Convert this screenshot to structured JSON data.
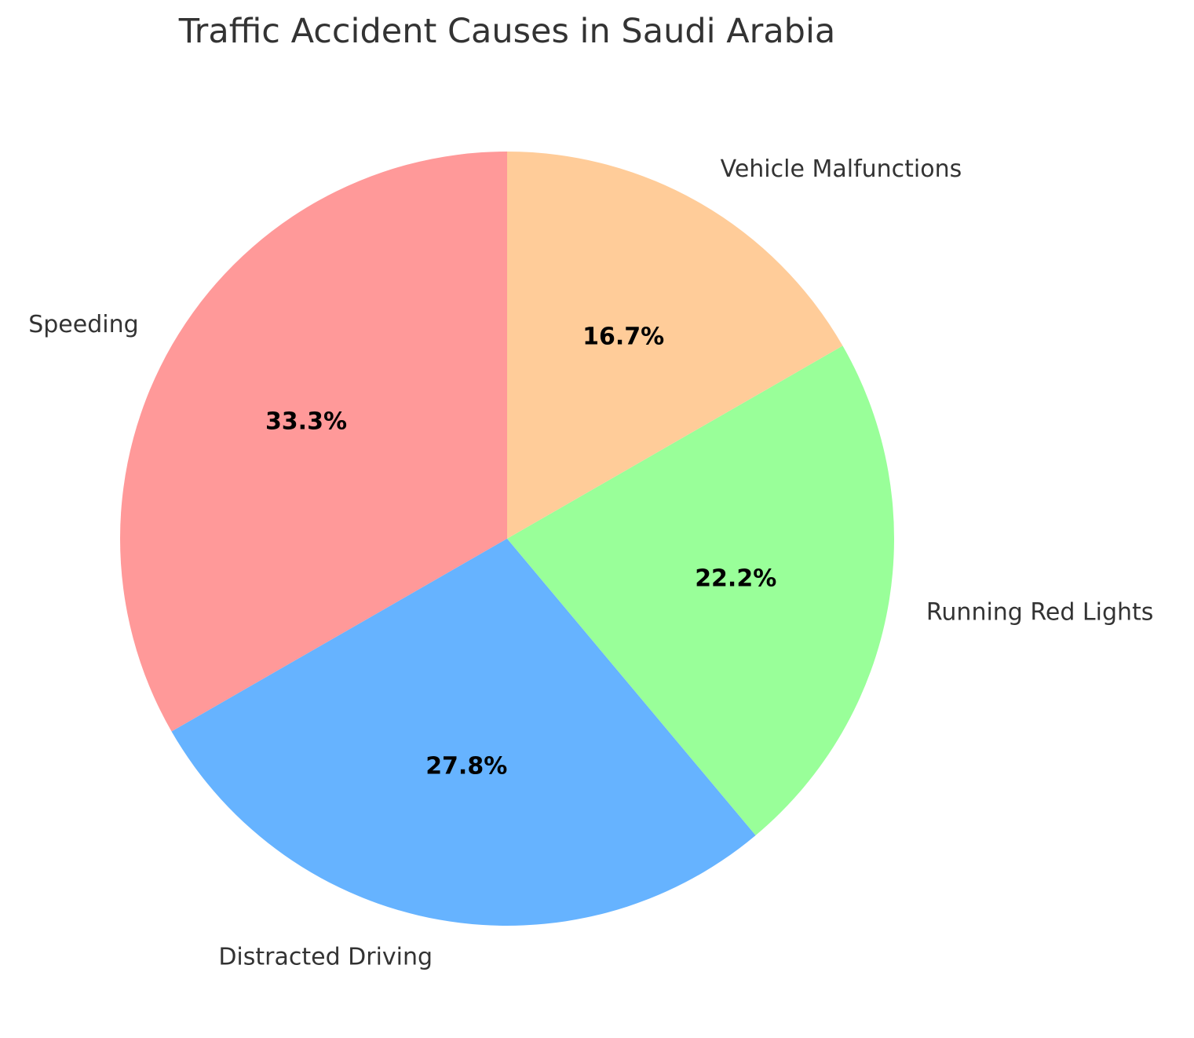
{
  "chart_data": {
    "type": "pie",
    "title": "Traffic Accident Causes in Saudi Arabia",
    "categories": [
      "Speeding",
      "Distracted Driving",
      "Running Red Lights",
      "Vehicle Malfunctions"
    ],
    "values": [
      33.3,
      27.8,
      22.2,
      16.7
    ],
    "value_labels": [
      "33.3%",
      "27.8%",
      "22.2%",
      "16.7%"
    ],
    "colors": [
      "#ff9999",
      "#66b3ff",
      "#99ff99",
      "#ffcc99"
    ],
    "start_angle_deg": 90,
    "direction": "counterclockwise",
    "legend": "none"
  }
}
